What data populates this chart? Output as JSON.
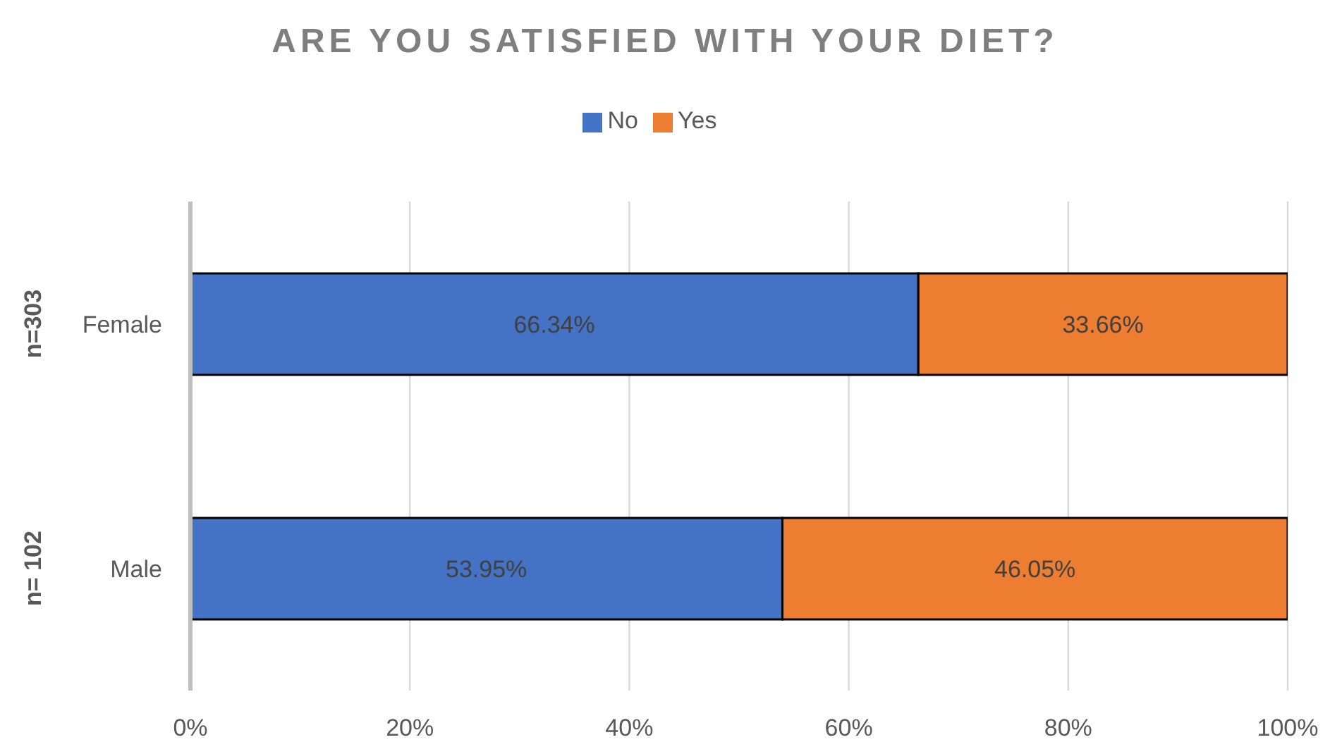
{
  "chart_data": {
    "type": "bar",
    "orientation": "horizontal",
    "stacked": true,
    "title": "ARE YOU SATISFIED WITH YOUR DIET?",
    "categories": [
      "Female",
      "Male"
    ],
    "series": [
      {
        "name": "No",
        "color": "#4472c4",
        "values": [
          66.34,
          53.95
        ],
        "value_labels": [
          "66.34%",
          "53.95%"
        ]
      },
      {
        "name": "Yes",
        "color": "#ed7d31",
        "values": [
          33.66,
          46.05
        ],
        "value_labels": [
          "33.66%",
          "46.05%"
        ]
      }
    ],
    "xlim": [
      0,
      100
    ],
    "xticks": [
      {
        "value": 0,
        "label": "0%"
      },
      {
        "value": 20,
        "label": "20%"
      },
      {
        "value": 40,
        "label": "40%"
      },
      {
        "value": 60,
        "label": "60%"
      },
      {
        "value": 80,
        "label": "80%"
      },
      {
        "value": 100,
        "label": "100%"
      }
    ],
    "annotations": [
      "n=303",
      "n= 102"
    ],
    "grid": "x",
    "legend": "top"
  }
}
